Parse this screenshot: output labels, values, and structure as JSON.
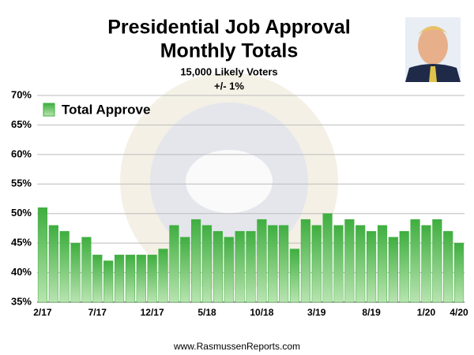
{
  "chart_data": {
    "type": "bar",
    "title": [
      "Presidential Job Approval",
      "Monthly Totals"
    ],
    "subtitle": [
      "15,000 Likely Voters",
      "+/- 1%"
    ],
    "source": "www.RasmussenReports.com",
    "categories": [
      "2/17",
      null,
      null,
      null,
      null,
      "7/17",
      null,
      null,
      null,
      null,
      "12/17",
      null,
      null,
      null,
      null,
      "5/18",
      null,
      null,
      null,
      null,
      "10/18",
      null,
      null,
      null,
      null,
      "3/19",
      null,
      null,
      null,
      null,
      "8/19",
      null,
      null,
      null,
      null,
      "1/20",
      null,
      null,
      "4/20"
    ],
    "series": [
      {
        "name": "Total Approve",
        "color": "#3fae3f",
        "values": [
          51,
          48,
          47,
          45,
          46,
          43,
          42,
          43,
          43,
          43,
          43,
          44,
          48,
          46,
          49,
          48,
          47,
          46,
          47,
          47,
          49,
          48,
          48,
          44,
          49,
          48,
          50,
          48,
          49,
          48,
          47,
          48,
          46,
          47,
          49,
          48,
          49,
          47,
          45
        ]
      }
    ],
    "ylim": [
      35,
      70
    ],
    "yticks": [
      {
        "value": 35,
        "label": "35%"
      },
      {
        "value": 40,
        "label": "40%"
      },
      {
        "value": 45,
        "label": "45%"
      },
      {
        "value": 50,
        "label": "50%"
      },
      {
        "value": 55,
        "label": "55%"
      },
      {
        "value": 60,
        "label": "60%"
      },
      {
        "value": 65,
        "label": "65%"
      },
      {
        "value": 70,
        "label": "70%"
      }
    ],
    "grid": true,
    "legend": "top-left"
  }
}
